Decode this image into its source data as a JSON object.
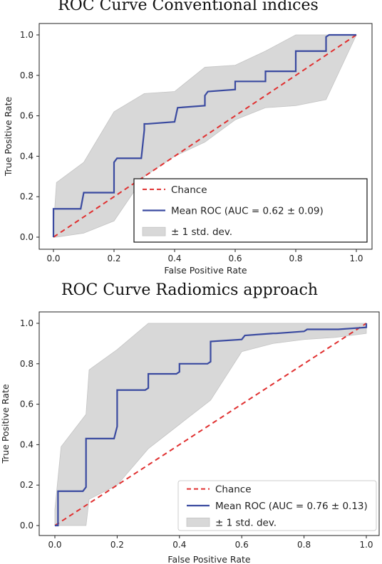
{
  "chart_data": [
    {
      "type": "line",
      "title": "ROC Curve Conventional indices",
      "xlabel": "False Positive Rate",
      "ylabel": "True Positive Rate",
      "xlim": [
        0,
        1
      ],
      "ylim": [
        0,
        1
      ],
      "xticks": [
        "0.0",
        "0.2",
        "0.4",
        "0.6",
        "0.8",
        "1.0"
      ],
      "yticks": [
        "0.0",
        "0.2",
        "0.4",
        "0.6",
        "0.8",
        "1.0"
      ],
      "grid": false,
      "legend_position": "lower-right",
      "legend": [
        "Chance",
        "Mean ROC (AUC = 0.62 ± 0.09)",
        "± 1 std. dev."
      ],
      "series": [
        {
          "name": "Mean ROC (AUC = 0.62 ± 0.09)",
          "color": "#3a4aa0",
          "x": [
            0.0,
            0.0,
            0.01,
            0.09,
            0.1,
            0.2,
            0.2,
            0.21,
            0.29,
            0.3,
            0.3,
            0.31,
            0.4,
            0.41,
            0.5,
            0.5,
            0.51,
            0.6,
            0.6,
            0.7,
            0.7,
            0.71,
            0.8,
            0.8,
            0.81,
            0.9,
            0.9,
            0.91,
            1.0
          ],
          "y": [
            0.0,
            0.14,
            0.14,
            0.14,
            0.22,
            0.22,
            0.37,
            0.39,
            0.39,
            0.53,
            0.56,
            0.56,
            0.57,
            0.64,
            0.65,
            0.7,
            0.72,
            0.73,
            0.77,
            0.77,
            0.82,
            0.82,
            0.82,
            0.92,
            0.92,
            0.92,
            0.99,
            1.0,
            1.0
          ]
        },
        {
          "name": "Chance",
          "color": "#e03030",
          "style": "dashed",
          "x": [
            0,
            1
          ],
          "y": [
            0,
            1
          ]
        }
      ],
      "band": {
        "name": "± 1 std. dev.",
        "color": "#d8d8d8",
        "x": [
          0.0,
          0.01,
          0.1,
          0.2,
          0.3,
          0.4,
          0.5,
          0.6,
          0.7,
          0.8,
          0.9,
          1.0
        ],
        "upper": [
          0.05,
          0.27,
          0.37,
          0.62,
          0.71,
          0.72,
          0.84,
          0.85,
          0.92,
          1.0,
          1.0,
          1.0
        ],
        "lower": [
          0.0,
          0.0,
          0.02,
          0.08,
          0.3,
          0.4,
          0.47,
          0.58,
          0.64,
          0.65,
          0.68,
          1.0
        ]
      }
    },
    {
      "type": "line",
      "title": "ROC Curve Radiomics approach",
      "xlabel": "False Positive Rate",
      "ylabel": "True Positive Rate",
      "xlim": [
        0,
        1
      ],
      "ylim": [
        0,
        1
      ],
      "xticks": [
        "0.0",
        "0.2",
        "0.4",
        "0.6",
        "0.8",
        "1.0"
      ],
      "yticks": [
        "0.0",
        "0.2",
        "0.4",
        "0.6",
        "0.8",
        "1.0"
      ],
      "grid": false,
      "legend_position": "lower-right",
      "legend": [
        "Chance",
        "Mean ROC (AUC = 0.76 ± 0.13)",
        "± 1 std. dev."
      ],
      "series": [
        {
          "name": "Mean ROC (AUC = 0.76 ± 0.13)",
          "color": "#3a4aa0",
          "x": [
            0.0,
            0.01,
            0.01,
            0.09,
            0.1,
            0.1,
            0.19,
            0.2,
            0.2,
            0.29,
            0.3,
            0.3,
            0.39,
            0.4,
            0.4,
            0.49,
            0.5,
            0.5,
            0.6,
            0.61,
            0.7,
            0.71,
            0.8,
            0.81,
            0.9,
            0.91,
            1.0,
            1.0
          ],
          "y": [
            0.0,
            0.0,
            0.17,
            0.17,
            0.19,
            0.43,
            0.43,
            0.49,
            0.67,
            0.67,
            0.68,
            0.75,
            0.75,
            0.76,
            0.8,
            0.8,
            0.81,
            0.91,
            0.92,
            0.94,
            0.95,
            0.95,
            0.96,
            0.97,
            0.97,
            0.97,
            0.98,
            1.0
          ]
        },
        {
          "name": "Chance",
          "color": "#e03030",
          "style": "dashed",
          "x": [
            0,
            1
          ],
          "y": [
            0,
            1
          ]
        }
      ],
      "band": {
        "name": "± 1 std. dev.",
        "color": "#d8d8d8",
        "x": [
          0.0,
          0.02,
          0.1,
          0.11,
          0.2,
          0.3,
          0.4,
          0.5,
          0.6,
          0.7,
          0.8,
          0.9,
          1.0
        ],
        "upper": [
          0.08,
          0.39,
          0.55,
          0.77,
          0.87,
          1.0,
          1.0,
          1.0,
          1.0,
          1.0,
          1.0,
          1.0,
          1.0
        ],
        "lower": [
          0.0,
          0.0,
          0.0,
          0.13,
          0.2,
          0.38,
          0.5,
          0.62,
          0.86,
          0.9,
          0.92,
          0.93,
          0.95
        ]
      }
    }
  ]
}
